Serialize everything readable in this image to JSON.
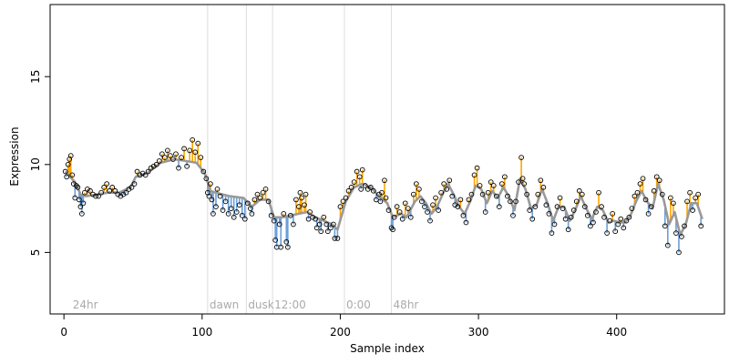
{
  "chart_data": {
    "type": "scatter",
    "title": "",
    "xlabel": "Sample index",
    "ylabel": "Expression",
    "xlim": [
      -10,
      478
    ],
    "ylim": [
      1.5,
      19.1
    ],
    "x_ticks": [
      0,
      100,
      200,
      300,
      400
    ],
    "y_ticks": [
      5,
      10,
      15
    ],
    "grid": false,
    "legend": "none",
    "colors": {
      "points": "#000000",
      "fitted_line": "#999999",
      "residual_up": "#FFA500",
      "residual_down": "#6A9FD8",
      "markers": "#DDDDDD",
      "annotation": "#AAAAAA"
    },
    "vertical_markers": [
      {
        "x": 5,
        "label": "24hr",
        "line": false
      },
      {
        "x": 104,
        "label": "dawn",
        "line": true
      },
      {
        "x": 132,
        "label": "dusk",
        "line": true
      },
      {
        "x": 151,
        "label": "12:00",
        "line": true
      },
      {
        "x": 203,
        "label": "0:00",
        "line": true
      },
      {
        "x": 237,
        "label": "48hr",
        "line": true
      }
    ],
    "points": [
      [
        1,
        9.6
      ],
      [
        2,
        9.3
      ],
      [
        3,
        10.0
      ],
      [
        4,
        10.3
      ],
      [
        5,
        10.5
      ],
      [
        6,
        9.4
      ],
      [
        7,
        8.9
      ],
      [
        8,
        8.1
      ],
      [
        9,
        8.8
      ],
      [
        10,
        8.7
      ],
      [
        11,
        8.0
      ],
      [
        12,
        7.6
      ],
      [
        13,
        7.2
      ],
      [
        14,
        7.8
      ],
      [
        15,
        8.4
      ],
      [
        17,
        8.6
      ],
      [
        19,
        8.5
      ],
      [
        21,
        8.3
      ],
      [
        23,
        8.2
      ],
      [
        25,
        8.2
      ],
      [
        27,
        8.4
      ],
      [
        29,
        8.7
      ],
      [
        31,
        8.9
      ],
      [
        33,
        8.5
      ],
      [
        35,
        8.7
      ],
      [
        37,
        8.5
      ],
      [
        39,
        8.3
      ],
      [
        41,
        8.2
      ],
      [
        43,
        8.3
      ],
      [
        45,
        8.4
      ],
      [
        47,
        8.6
      ],
      [
        49,
        8.7
      ],
      [
        51,
        8.9
      ],
      [
        53,
        9.6
      ],
      [
        55,
        9.4
      ],
      [
        57,
        9.5
      ],
      [
        59,
        9.4
      ],
      [
        61,
        9.6
      ],
      [
        63,
        9.8
      ],
      [
        65,
        9.9
      ],
      [
        67,
        10.0
      ],
      [
        69,
        10.2
      ],
      [
        71,
        10.6
      ],
      [
        73,
        10.4
      ],
      [
        75,
        10.8
      ],
      [
        77,
        10.5
      ],
      [
        79,
        10.3
      ],
      [
        81,
        10.6
      ],
      [
        83,
        9.8
      ],
      [
        85,
        10.4
      ],
      [
        87,
        10.9
      ],
      [
        89,
        9.9
      ],
      [
        91,
        10.8
      ],
      [
        93,
        11.4
      ],
      [
        95,
        10.7
      ],
      [
        97,
        11.2
      ],
      [
        99,
        10.4
      ],
      [
        101,
        9.6
      ],
      [
        103,
        9.2
      ],
      [
        104,
        8.4
      ],
      [
        105,
        8.2
      ],
      [
        106,
        8.9
      ],
      [
        107,
        8.0
      ],
      [
        108,
        7.2
      ],
      [
        110,
        7.6
      ],
      [
        111,
        8.6
      ],
      [
        113,
        8.2
      ],
      [
        115,
        7.4
      ],
      [
        117,
        7.9
      ],
      [
        119,
        7.2
      ],
      [
        121,
        7.5
      ],
      [
        123,
        7.0
      ],
      [
        125,
        7.3
      ],
      [
        127,
        7.7
      ],
      [
        129,
        7.1
      ],
      [
        131,
        6.9
      ],
      [
        133,
        7.8
      ],
      [
        135,
        7.5
      ],
      [
        136,
        7.2
      ],
      [
        138,
        8.0
      ],
      [
        140,
        8.3
      ],
      [
        142,
        8.1
      ],
      [
        144,
        8.4
      ],
      [
        146,
        8.6
      ],
      [
        148,
        7.9
      ],
      [
        150,
        7.1
      ],
      [
        152,
        6.8
      ],
      [
        153,
        5.7
      ],
      [
        154,
        5.3
      ],
      [
        156,
        6.6
      ],
      [
        157,
        5.3
      ],
      [
        159,
        7.2
      ],
      [
        161,
        5.6
      ],
      [
        162,
        5.3
      ],
      [
        164,
        7.1
      ],
      [
        166,
        6.6
      ],
      [
        168,
        8.0
      ],
      [
        170,
        7.6
      ],
      [
        171,
        8.4
      ],
      [
        172,
        8.1
      ],
      [
        174,
        7.7
      ],
      [
        175,
        8.3
      ],
      [
        177,
        6.9
      ],
      [
        178,
        7.3
      ],
      [
        180,
        7.0
      ],
      [
        182,
        6.9
      ],
      [
        183,
        6.4
      ],
      [
        185,
        6.6
      ],
      [
        186,
        6.2
      ],
      [
        188,
        7.0
      ],
      [
        190,
        6.6
      ],
      [
        191,
        6.2
      ],
      [
        193,
        6.4
      ],
      [
        195,
        6.6
      ],
      [
        196,
        5.8
      ],
      [
        198,
        5.8
      ],
      [
        200,
        7.6
      ],
      [
        202,
        7.9
      ],
      [
        204,
        8.1
      ],
      [
        206,
        8.5
      ],
      [
        208,
        8.7
      ],
      [
        210,
        9.0
      ],
      [
        212,
        9.6
      ],
      [
        214,
        9.3
      ],
      [
        215,
        8.6
      ],
      [
        216,
        9.7
      ],
      [
        218,
        8.8
      ],
      [
        220,
        8.6
      ],
      [
        222,
        8.7
      ],
      [
        224,
        8.5
      ],
      [
        226,
        8.0
      ],
      [
        228,
        8.3
      ],
      [
        229,
        7.9
      ],
      [
        230,
        8.4
      ],
      [
        232,
        9.1
      ],
      [
        233,
        8.1
      ],
      [
        235,
        7.4
      ],
      [
        237,
        6.4
      ],
      [
        238,
        6.3
      ],
      [
        239,
        7.0
      ],
      [
        241,
        7.6
      ],
      [
        243,
        7.3
      ],
      [
        245,
        6.9
      ],
      [
        247,
        7.8
      ],
      [
        249,
        7.5
      ],
      [
        251,
        7.0
      ],
      [
        253,
        8.3
      ],
      [
        255,
        8.9
      ],
      [
        257,
        8.6
      ],
      [
        259,
        7.9
      ],
      [
        261,
        7.6
      ],
      [
        263,
        7.3
      ],
      [
        265,
        6.8
      ],
      [
        267,
        7.7
      ],
      [
        269,
        8.1
      ],
      [
        271,
        7.4
      ],
      [
        273,
        8.4
      ],
      [
        275,
        8.9
      ],
      [
        277,
        8.6
      ],
      [
        279,
        9.1
      ],
      [
        281,
        8.2
      ],
      [
        283,
        7.7
      ],
      [
        285,
        7.6
      ],
      [
        287,
        8.0
      ],
      [
        289,
        7.1
      ],
      [
        291,
        6.7
      ],
      [
        293,
        8.0
      ],
      [
        295,
        8.3
      ],
      [
        297,
        9.4
      ],
      [
        299,
        9.8
      ],
      [
        301,
        8.8
      ],
      [
        303,
        8.3
      ],
      [
        305,
        7.3
      ],
      [
        307,
        8.4
      ],
      [
        309,
        9.0
      ],
      [
        311,
        8.8
      ],
      [
        313,
        8.2
      ],
      [
        315,
        7.6
      ],
      [
        317,
        8.9
      ],
      [
        319,
        9.3
      ],
      [
        321,
        8.2
      ],
      [
        323,
        7.9
      ],
      [
        325,
        7.1
      ],
      [
        327,
        7.9
      ],
      [
        329,
        9.0
      ],
      [
        331,
        10.4
      ],
      [
        332,
        9.2
      ],
      [
        333,
        8.9
      ],
      [
        335,
        8.3
      ],
      [
        337,
        7.4
      ],
      [
        339,
        6.9
      ],
      [
        341,
        7.6
      ],
      [
        343,
        8.3
      ],
      [
        345,
        9.1
      ],
      [
        347,
        8.7
      ],
      [
        349,
        7.7
      ],
      [
        351,
        7.2
      ],
      [
        353,
        6.1
      ],
      [
        355,
        6.6
      ],
      [
        357,
        7.6
      ],
      [
        359,
        8.1
      ],
      [
        361,
        7.5
      ],
      [
        363,
        6.9
      ],
      [
        365,
        6.3
      ],
      [
        367,
        7.0
      ],
      [
        369,
        7.4
      ],
      [
        371,
        7.9
      ],
      [
        373,
        8.5
      ],
      [
        375,
        8.3
      ],
      [
        377,
        7.6
      ],
      [
        379,
        7.1
      ],
      [
        381,
        6.5
      ],
      [
        383,
        6.7
      ],
      [
        385,
        7.3
      ],
      [
        387,
        8.4
      ],
      [
        389,
        7.6
      ],
      [
        391,
        7.0
      ],
      [
        393,
        6.1
      ],
      [
        395,
        6.8
      ],
      [
        397,
        7.2
      ],
      [
        399,
        6.2
      ],
      [
        401,
        6.6
      ],
      [
        403,
        6.9
      ],
      [
        405,
        6.4
      ],
      [
        407,
        6.8
      ],
      [
        409,
        7.0
      ],
      [
        411,
        7.5
      ],
      [
        413,
        8.2
      ],
      [
        415,
        8.4
      ],
      [
        417,
        8.9
      ],
      [
        419,
        9.2
      ],
      [
        421,
        8.0
      ],
      [
        423,
        7.2
      ],
      [
        425,
        7.6
      ],
      [
        427,
        8.5
      ],
      [
        429,
        9.3
      ],
      [
        431,
        9.1
      ],
      [
        433,
        8.3
      ],
      [
        435,
        6.5
      ],
      [
        437,
        5.4
      ],
      [
        439,
        8.1
      ],
      [
        441,
        7.8
      ],
      [
        443,
        6.1
      ],
      [
        445,
        5.0
      ],
      [
        447,
        5.9
      ],
      [
        449,
        6.5
      ],
      [
        451,
        7.9
      ],
      [
        453,
        8.4
      ],
      [
        455,
        7.4
      ],
      [
        457,
        8.1
      ],
      [
        459,
        8.3
      ],
      [
        461,
        6.5
      ]
    ],
    "fitted": [
      [
        1,
        9.6
      ],
      [
        8,
        9.0
      ],
      [
        12,
        8.3
      ],
      [
        16,
        8.2
      ],
      [
        24,
        8.3
      ],
      [
        32,
        8.4
      ],
      [
        40,
        8.4
      ],
      [
        48,
        8.7
      ],
      [
        52,
        9.3
      ],
      [
        60,
        9.5
      ],
      [
        70,
        10.1
      ],
      [
        80,
        10.3
      ],
      [
        88,
        10.2
      ],
      [
        96,
        10.1
      ],
      [
        102,
        9.5
      ],
      [
        106,
        8.5
      ],
      [
        110,
        8.4
      ],
      [
        120,
        8.2
      ],
      [
        130,
        8.1
      ],
      [
        136,
        7.6
      ],
      [
        142,
        8.0
      ],
      [
        148,
        8.0
      ],
      [
        152,
        7.0
      ],
      [
        158,
        7.0
      ],
      [
        164,
        7.1
      ],
      [
        170,
        7.2
      ],
      [
        176,
        7.3
      ],
      [
        182,
        7.0
      ],
      [
        188,
        6.8
      ],
      [
        194,
        6.6
      ],
      [
        198,
        6.3
      ],
      [
        204,
        7.9
      ],
      [
        210,
        8.7
      ],
      [
        216,
        8.9
      ],
      [
        222,
        8.7
      ],
      [
        228,
        8.2
      ],
      [
        234,
        7.8
      ],
      [
        238,
        7.0
      ],
      [
        244,
        7.2
      ],
      [
        248,
        7.0
      ],
      [
        254,
        7.9
      ],
      [
        258,
        8.2
      ],
      [
        262,
        7.8
      ],
      [
        266,
        7.2
      ],
      [
        270,
        7.6
      ],
      [
        274,
        8.3
      ],
      [
        278,
        8.9
      ],
      [
        282,
        8.3
      ],
      [
        286,
        7.6
      ],
      [
        290,
        7.2
      ],
      [
        294,
        7.9
      ],
      [
        298,
        8.8
      ],
      [
        302,
        8.6
      ],
      [
        306,
        7.8
      ],
      [
        310,
        8.5
      ],
      [
        314,
        8.1
      ],
      [
        318,
        8.7
      ],
      [
        322,
        8.2
      ],
      [
        326,
        7.4
      ],
      [
        330,
        9.2
      ],
      [
        334,
        8.6
      ],
      [
        338,
        7.5
      ],
      [
        342,
        7.7
      ],
      [
        346,
        8.6
      ],
      [
        350,
        7.8
      ],
      [
        354,
        6.8
      ],
      [
        358,
        7.6
      ],
      [
        362,
        7.6
      ],
      [
        366,
        6.8
      ],
      [
        370,
        7.4
      ],
      [
        374,
        8.2
      ],
      [
        378,
        7.5
      ],
      [
        382,
        6.9
      ],
      [
        386,
        7.6
      ],
      [
        390,
        7.4
      ],
      [
        394,
        6.7
      ],
      [
        398,
        6.8
      ],
      [
        402,
        6.7
      ],
      [
        406,
        6.7
      ],
      [
        410,
        7.1
      ],
      [
        414,
        7.9
      ],
      [
        418,
        8.5
      ],
      [
        422,
        7.9
      ],
      [
        426,
        7.5
      ],
      [
        430,
        8.9
      ],
      [
        434,
        8.0
      ],
      [
        438,
        6.6
      ],
      [
        442,
        7.3
      ],
      [
        446,
        6.0
      ],
      [
        450,
        6.6
      ],
      [
        454,
        7.8
      ],
      [
        458,
        7.8
      ],
      [
        462,
        6.9
      ]
    ]
  }
}
